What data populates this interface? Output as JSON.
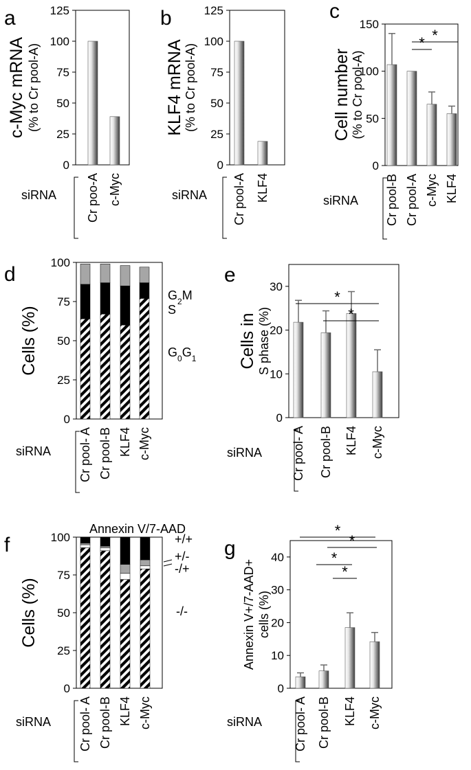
{
  "chart_data": [
    {
      "panel": "a",
      "type": "bar",
      "ylabel": "c-Myc mRNA",
      "ylabel2": "(% to Cr pool-A)",
      "ylim": [
        0,
        125
      ],
      "yticks": [
        0,
        25,
        50,
        75,
        100,
        125
      ],
      "group_label": "siRNA",
      "categories": [
        "Cr poo-A",
        "c-Myc"
      ],
      "values": [
        100,
        39
      ]
    },
    {
      "panel": "b",
      "type": "bar",
      "ylabel": "KLF4 mRNA",
      "ylabel2": "(% to Cr pool-A)",
      "ylim": [
        0,
        125
      ],
      "yticks": [
        0,
        25,
        50,
        75,
        100,
        125
      ],
      "group_label": "siRNA",
      "categories": [
        "Cr pool-A",
        "KLF4"
      ],
      "values": [
        100,
        19
      ]
    },
    {
      "panel": "c",
      "type": "bar",
      "ylabel": "Cell number",
      "ylabel2": "(% to Cr pool-A)",
      "ylim": [
        0,
        150
      ],
      "yticks": [
        0,
        50,
        100,
        150
      ],
      "group_label": "siRNA",
      "categories": [
        "Cr pool-B",
        "Cr pool-A",
        "c-Myc",
        "KLF4"
      ],
      "values": [
        107,
        100,
        65,
        55
      ],
      "errors": [
        33,
        0,
        13,
        8
      ],
      "significance": [
        {
          "from": 1,
          "to": 2,
          "label": "*"
        },
        {
          "from": 1,
          "to": 3,
          "label": "*"
        }
      ]
    },
    {
      "panel": "d",
      "type": "stacked-bar",
      "ylabel": "Cells (%)",
      "ylim": [
        0,
        100
      ],
      "yticks": [
        0,
        25,
        50,
        75,
        100
      ],
      "group_label": "siRNA",
      "categories": [
        "Cr pool- A",
        "Cr pool-B",
        "KLF4",
        "c-Myc"
      ],
      "series": [
        {
          "name": "G0G1",
          "pattern": "hatch",
          "values": [
            64,
            67,
            60,
            77
          ]
        },
        {
          "name": "S",
          "color": "#000000",
          "values": [
            22,
            20,
            25,
            10
          ]
        },
        {
          "name": "G2M",
          "color": "#a6a6a6",
          "values": [
            13,
            12,
            13,
            10
          ]
        }
      ]
    },
    {
      "panel": "e",
      "type": "bar",
      "ylabel": "Cells in",
      "ylabel2": "S phase (%)",
      "ylim": [
        0,
        35
      ],
      "yticks": [
        0,
        10,
        20,
        30
      ],
      "group_label": "siRNA",
      "categories": [
        "Cr pool- A",
        "Cr pool-B",
        "KLF4",
        "c-Myc"
      ],
      "values": [
        21.8,
        19.4,
        23.8,
        10.5
      ],
      "errors": [
        5,
        5,
        5,
        5
      ],
      "significance": [
        {
          "from": 0,
          "to": 3,
          "label": "*"
        },
        {
          "from": 1,
          "to": 3,
          "label": "*"
        }
      ]
    },
    {
      "panel": "f",
      "type": "stacked-bar",
      "title": "Annexin V/7-AAD",
      "ylabel": "Cells (%)",
      "ylim": [
        0,
        100
      ],
      "yticks": [
        0,
        25,
        50,
        75,
        100
      ],
      "group_label": "siRNA",
      "categories": [
        "Cr pool- A",
        "Cr pool-B",
        "KLF4",
        "c-Myc"
      ],
      "series": [
        {
          "name": "-/-",
          "pattern": "hatch",
          "values": [
            93,
            91,
            72,
            79
          ]
        },
        {
          "name": "-/+",
          "color": "#ffffff",
          "values": [
            2,
            2,
            4,
            2
          ]
        },
        {
          "name": "+/-",
          "color": "#a6a6a6",
          "values": [
            1,
            1,
            6,
            4
          ]
        },
        {
          "name": "+/+",
          "color": "#000000",
          "values": [
            4,
            6,
            18,
            15
          ]
        }
      ]
    },
    {
      "panel": "g",
      "type": "bar",
      "ylabel": "Annexin V+/7-AAD+",
      "ylabel2": "cells (%)",
      "ylim": [
        0,
        45
      ],
      "yticks": [
        0,
        10,
        20,
        30,
        40
      ],
      "group_label": "siRNA",
      "categories": [
        "Cr pool- A",
        "Cr pool-B",
        "KLF4",
        "c-Myc"
      ],
      "values": [
        3.5,
        5.3,
        18.5,
        14.2
      ],
      "errors": [
        1.2,
        1.8,
        4.5,
        2.8
      ],
      "significance": [
        {
          "from": 0,
          "to": 3,
          "label": "*"
        },
        {
          "from": 1,
          "to": 3,
          "label": "*"
        },
        {
          "from": 0,
          "to": 2,
          "label": "*"
        },
        {
          "from": 1,
          "to": 2,
          "label": "*"
        }
      ]
    }
  ]
}
